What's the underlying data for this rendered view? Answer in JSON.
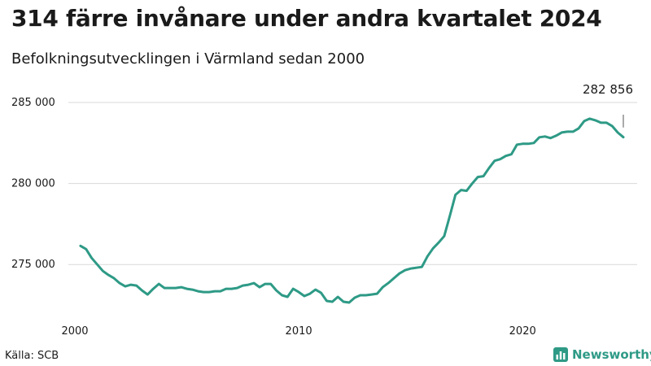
{
  "header": {
    "title": "314 färre invånare under andra kvartalet 2024",
    "subtitle": "Befolkningsutvecklingen i Värmland sedan 2000"
  },
  "footer": {
    "source": "Källa: SCB",
    "brand": "Newsworthy"
  },
  "colors": {
    "line": "#2e9a86",
    "grid": "#d9d9d9",
    "text": "#1a1a1a"
  },
  "icons": {
    "brand": "bar-chart-logo-icon"
  },
  "chart_data": {
    "type": "line",
    "xlim": [
      2000,
      2024.5
    ],
    "ylim": [
      272500,
      285000
    ],
    "x_ticks": [
      2000,
      2010,
      2020
    ],
    "x_tick_labels": [
      "2000",
      "2010",
      "2020"
    ],
    "y_ticks": [
      275000,
      280000,
      285000
    ],
    "y_tick_labels": [
      "275 000",
      "280 000",
      "285 000"
    ],
    "grid": true,
    "annotation": {
      "label": "282 856",
      "x": 2024.5,
      "y": 282856
    },
    "series": [
      {
        "x": [
          2000.25,
          2000.5,
          2000.75,
          2001.0,
          2001.25,
          2001.5,
          2001.75,
          2002.0,
          2002.25,
          2002.5,
          2002.75,
          2003.0,
          2003.25,
          2003.5,
          2003.75,
          2004.0,
          2004.25,
          2004.5,
          2004.75,
          2005.0,
          2005.25,
          2005.5,
          2005.75,
          2006.0,
          2006.25,
          2006.5,
          2006.75,
          2007.0,
          2007.25,
          2007.5,
          2007.75,
          2008.0,
          2008.25,
          2008.5,
          2008.75,
          2009.0,
          2009.25,
          2009.5,
          2009.75,
          2010.0,
          2010.25,
          2010.5,
          2010.75,
          2011.0,
          2011.25,
          2011.5,
          2011.75,
          2012.0,
          2012.25,
          2012.5,
          2012.75,
          2013.0,
          2013.25,
          2013.5,
          2013.75,
          2014.0,
          2014.25,
          2014.5,
          2014.75,
          2015.0,
          2015.25,
          2015.5,
          2015.75,
          2016.0,
          2016.25,
          2016.5,
          2016.75,
          2017.0,
          2017.25,
          2017.5,
          2017.75,
          2018.0,
          2018.25,
          2018.5,
          2018.75,
          2019.0,
          2019.25,
          2019.5,
          2019.75,
          2020.0,
          2020.25,
          2020.5,
          2020.75,
          2021.0,
          2021.25,
          2021.5,
          2021.75,
          2022.0,
          2022.25,
          2022.5,
          2022.75,
          2023.0,
          2023.25,
          2023.5,
          2023.75,
          2024.0,
          2024.25,
          2024.5
        ],
        "y": [
          276150,
          275950,
          275400,
          275000,
          274600,
          274350,
          274150,
          273850,
          273650,
          273750,
          273700,
          273400,
          273150,
          273500,
          273800,
          273550,
          273550,
          273550,
          273600,
          273500,
          273450,
          273350,
          273300,
          273300,
          273350,
          273350,
          273500,
          273500,
          273550,
          273700,
          273750,
          273850,
          273600,
          273800,
          273800,
          273400,
          273100,
          273000,
          273500,
          273300,
          273050,
          273200,
          273450,
          273250,
          272750,
          272700,
          273000,
          272700,
          272650,
          272950,
          273100,
          273100,
          273150,
          273200,
          273600,
          273850,
          274150,
          274450,
          274650,
          274750,
          274800,
          274850,
          275500,
          276000,
          276350,
          276750,
          278000,
          279300,
          279600,
          279550,
          280000,
          280400,
          280450,
          280950,
          281400,
          281500,
          281700,
          281800,
          282400,
          282450,
          282450,
          282500,
          282850,
          282900,
          282800,
          282950,
          283150,
          283200,
          283200,
          283400,
          283850,
          284000,
          283900,
          283750,
          283750,
          283550,
          283150,
          282856
        ]
      }
    ]
  }
}
